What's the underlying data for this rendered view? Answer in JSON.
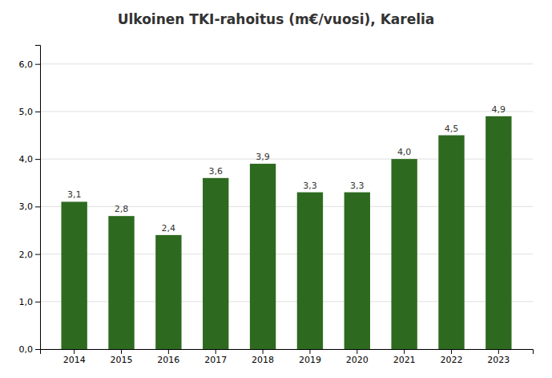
{
  "chart_data": {
    "type": "bar",
    "title": "Ulkoinen TKI-rahoitus (m€/vuosi), Karelia",
    "categories": [
      "2014",
      "2015",
      "2016",
      "2017",
      "2018",
      "2019",
      "2020",
      "2021",
      "2022",
      "2023"
    ],
    "values": [
      3.1,
      2.8,
      2.4,
      3.6,
      3.9,
      3.3,
      3.3,
      4.0,
      4.5,
      4.9
    ],
    "value_labels": [
      "3,1",
      "2,8",
      "2,4",
      "3,6",
      "3,9",
      "3,3",
      "3,3",
      "4,0",
      "4,5",
      "4,9"
    ],
    "data_labels": true,
    "color": "#2d6a1f",
    "ylim": [
      0,
      6.4
    ],
    "yticks": [
      {
        "value": 0.0,
        "label": "0,0"
      },
      {
        "value": 1.0,
        "label": "1,0"
      },
      {
        "value": 2.0,
        "label": "2,0"
      },
      {
        "value": 3.0,
        "label": "3,0"
      },
      {
        "value": 4.0,
        "label": "4,0"
      },
      {
        "value": 5.0,
        "label": "5,0"
      },
      {
        "value": 6.0,
        "label": "6,0"
      }
    ],
    "grid": true
  }
}
